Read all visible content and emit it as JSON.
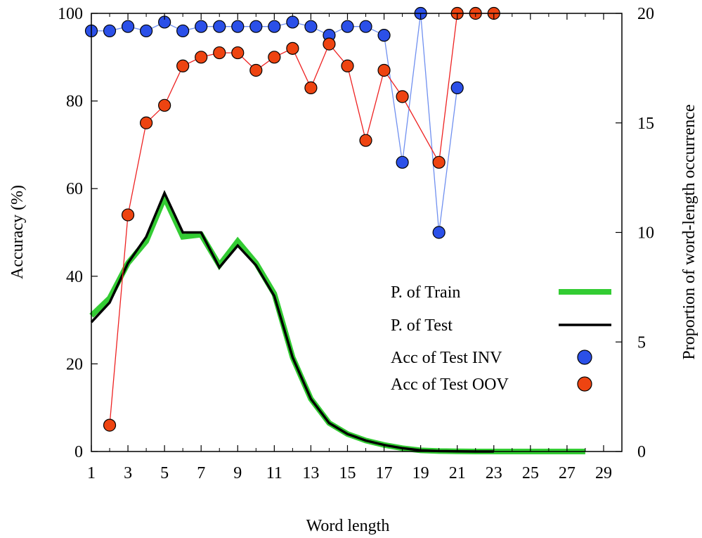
{
  "chart_data": {
    "type": "line",
    "title": "",
    "xlabel": "Word length",
    "ylabel": "Accuracy (%)",
    "y2label": "Proportion of word-length occurrence",
    "xlim": [
      1,
      30
    ],
    "ylim": [
      0,
      100
    ],
    "y2lim": [
      0,
      20
    ],
    "xticks": [
      1,
      3,
      5,
      7,
      9,
      11,
      13,
      15,
      17,
      19,
      21,
      23,
      25,
      27,
      29
    ],
    "yticks": [
      0,
      20,
      40,
      60,
      80,
      100
    ],
    "y2ticks": [
      0,
      5,
      10,
      15,
      20
    ],
    "grid": false,
    "legend_position": "right",
    "series": [
      {
        "name": "P. of Train",
        "axis": "y2",
        "style": "thick-line",
        "color": "#33cc33",
        "x": [
          1,
          2,
          3,
          4,
          5,
          6,
          7,
          8,
          9,
          10,
          11,
          12,
          13,
          14,
          15,
          16,
          17,
          18,
          19,
          20,
          21,
          22,
          23,
          24,
          25,
          26,
          27,
          28
        ],
        "values": [
          6.2,
          7.0,
          8.6,
          9.6,
          11.6,
          9.8,
          9.9,
          8.5,
          9.6,
          8.6,
          7.2,
          4.3,
          2.4,
          1.3,
          0.8,
          0.5,
          0.3,
          0.15,
          0.05,
          0.02,
          0.01,
          0.0,
          0.0,
          0.0,
          0.0,
          0.0,
          0.0,
          0.0
        ]
      },
      {
        "name": "P. of Test",
        "axis": "y2",
        "style": "line",
        "color": "#000000",
        "x": [
          1,
          2,
          3,
          4,
          5,
          6,
          7,
          8,
          9,
          10,
          11,
          12,
          13,
          14,
          15,
          16,
          17,
          18,
          19,
          20,
          21,
          22,
          23
        ],
        "values": [
          5.9,
          6.8,
          8.6,
          9.8,
          11.8,
          10.0,
          10.0,
          8.4,
          9.4,
          8.5,
          7.1,
          4.3,
          2.4,
          1.3,
          0.8,
          0.5,
          0.3,
          0.15,
          0.05,
          0.02,
          0.01,
          0.0,
          0.0
        ]
      },
      {
        "name": "Acc of Test INV",
        "axis": "y",
        "style": "marker-line",
        "color": "#2b50e8",
        "line_color": "#7090f0",
        "x": [
          1,
          2,
          3,
          4,
          5,
          6,
          7,
          8,
          9,
          10,
          11,
          12,
          13,
          14,
          15,
          16,
          17,
          18,
          19,
          20,
          21,
          22,
          23
        ],
        "values": [
          96,
          96,
          97,
          96,
          98,
          96,
          97,
          97,
          97,
          97,
          97,
          98,
          97,
          95,
          97,
          97,
          95,
          66,
          100,
          50,
          83,
          null,
          null
        ]
      },
      {
        "name": "Acc of Test OOV",
        "axis": "y",
        "style": "marker-line",
        "color": "#ee4411",
        "line_color": "#ee2222",
        "x": [
          2,
          3,
          4,
          5,
          6,
          7,
          8,
          9,
          10,
          11,
          12,
          13,
          14,
          15,
          16,
          17,
          18,
          20,
          21,
          22,
          23
        ],
        "values": [
          6,
          54,
          75,
          79,
          88,
          90,
          91,
          91,
          87,
          90,
          92,
          83,
          93,
          88,
          71,
          87,
          81,
          66,
          100,
          100,
          100
        ]
      }
    ]
  }
}
